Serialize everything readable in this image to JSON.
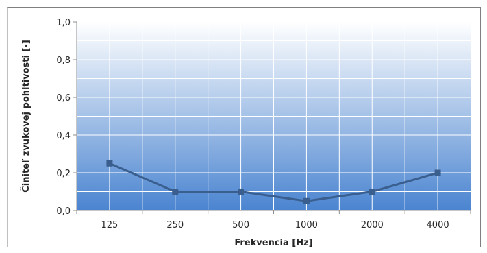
{
  "chart_data": {
    "type": "line",
    "categories": [
      "125",
      "250",
      "500",
      "1000",
      "2000",
      "4000"
    ],
    "series": [
      {
        "values": [
          0.25,
          0.1,
          0.1,
          0.05,
          0.1,
          0.2
        ]
      }
    ],
    "xlabel": "Frekvencia [Hz]",
    "ylabel": "Činiteľ zvukovej pohltivosti [-]",
    "ylim": [
      0,
      1
    ],
    "yticks": [
      "0,0",
      "0,2",
      "0,4",
      "0,6",
      "0,8",
      "1,0"
    ],
    "yticks_values": [
      0,
      0.2,
      0.4,
      0.6,
      0.8,
      1.0
    ],
    "grid": true,
    "legend": "none",
    "colors": {
      "line": "#3a5f8f",
      "marker": "#3a5f8f",
      "plot_top": "#ffffff",
      "plot_bottom": "#4a84d0",
      "grid": "#ffffff"
    }
  }
}
